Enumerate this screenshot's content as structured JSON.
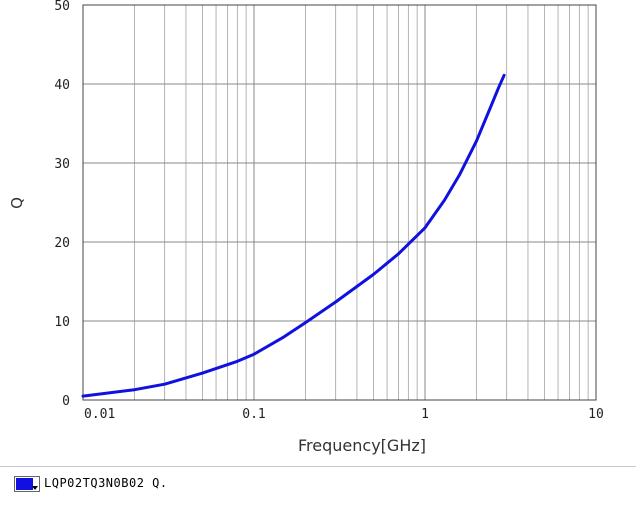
{
  "chart_data": {
    "type": "line",
    "xlabel": "Frequency[GHz]",
    "ylabel": "Q",
    "x_scale": "log",
    "xlim": [
      0.01,
      10
    ],
    "ylim": [
      0,
      50
    ],
    "x_ticks": [
      0.01,
      0.1,
      1,
      10
    ],
    "x_tick_labels": [
      "0.01",
      "0.1",
      "1",
      "10"
    ],
    "y_ticks": [
      0,
      10,
      20,
      30,
      40,
      50
    ],
    "y_tick_labels": [
      "0",
      "10",
      "20",
      "30",
      "40",
      "50"
    ],
    "grid": true,
    "series": [
      {
        "name": "LQP02TQ3N0B02 Q.",
        "color": "#1010e0",
        "x": [
          0.01,
          0.02,
          0.03,
          0.05,
          0.08,
          0.1,
          0.15,
          0.2,
          0.3,
          0.5,
          0.7,
          1.0,
          1.3,
          1.6,
          2.0,
          2.4,
          2.7,
          2.9
        ],
        "y": [
          0.5,
          1.3,
          2.0,
          3.4,
          4.9,
          5.8,
          8.0,
          9.8,
          12.4,
          15.9,
          18.5,
          21.8,
          25.3,
          28.6,
          32.8,
          36.9,
          39.6,
          41.1
        ]
      }
    ]
  },
  "legend": {
    "label": "LQP02TQ3N0B02 Q.",
    "swatch_color": "#1010e0"
  }
}
